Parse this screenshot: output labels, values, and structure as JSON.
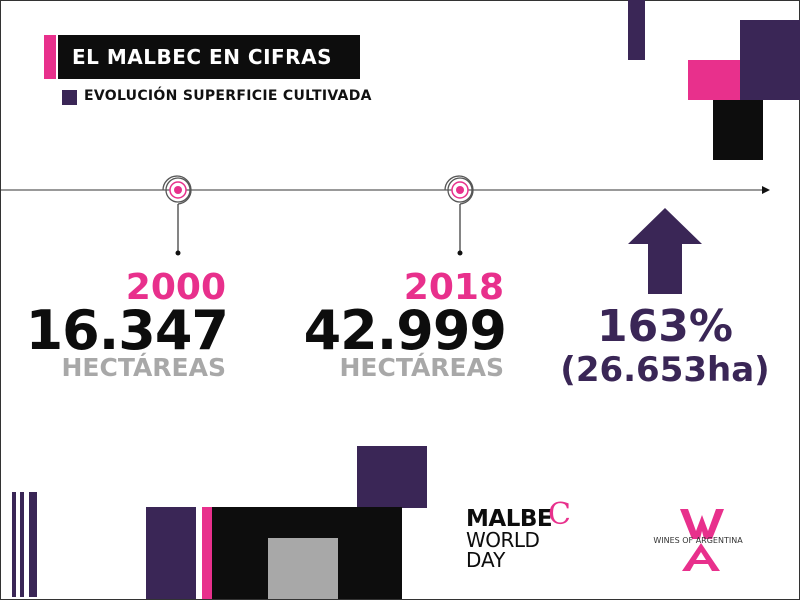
{
  "header": {
    "title": "EL MALBEC EN CIFRAS",
    "subtitle": "EVOLUCIÓN SUPERFICIE CULTIVADA"
  },
  "stats": [
    {
      "year": "2000",
      "value": "16.347",
      "unit": "HECTÁREAS"
    },
    {
      "year": "2018",
      "value": "42.999",
      "unit": "HECTÁREAS"
    }
  ],
  "growth": {
    "percent": "163%",
    "difference": "(26.653ha)"
  },
  "logos": {
    "malbec_line1": "MALBE",
    "malbec_c": "C",
    "malbec_line2": "WORLD",
    "malbec_line3": "DAY",
    "woa_text": "WINES OF ARGENTINA"
  },
  "colors": {
    "pink": "#e8308c",
    "purple": "#3a2656",
    "black": "#0d0d0d",
    "gray": "#a8a8a8"
  },
  "icons": [
    "target-icon",
    "arrow-up-icon",
    "wines-of-argentina-logo-icon"
  ]
}
